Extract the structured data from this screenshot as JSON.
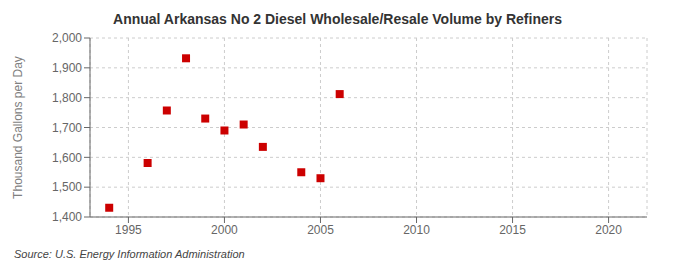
{
  "chart_data": {
    "type": "scatter",
    "title": "Annual Arkansas No 2 Diesel Wholesale/Resale Volume by Refiners",
    "ylabel": "Thousand Gallons per Day",
    "annotations": [
      "Source: U.S. Energy Information Administration"
    ],
    "x": [
      1994,
      1996,
      1997,
      1998,
      1999,
      2000,
      2001,
      2002,
      2004,
      2005,
      2006
    ],
    "values": [
      1431,
      1581,
      1757,
      1932,
      1730,
      1690,
      1710,
      1635,
      1550,
      1530,
      1812
    ],
    "color": "#cc0000",
    "marker": "square",
    "xlim": [
      1993,
      2022
    ],
    "ylim": [
      1400,
      2000
    ],
    "xticks": [
      1995,
      2000,
      2005,
      2010,
      2015,
      2020
    ],
    "yticks": [
      {
        "value": 1400,
        "label": "1,400"
      },
      {
        "value": 1500,
        "label": "1,500"
      },
      {
        "value": 1600,
        "label": "1,600"
      },
      {
        "value": 1700,
        "label": "1,700"
      },
      {
        "value": 1800,
        "label": "1,800"
      },
      {
        "value": 1900,
        "label": "1,900"
      },
      {
        "value": 2000,
        "label": "2,000"
      }
    ],
    "grid": true
  }
}
